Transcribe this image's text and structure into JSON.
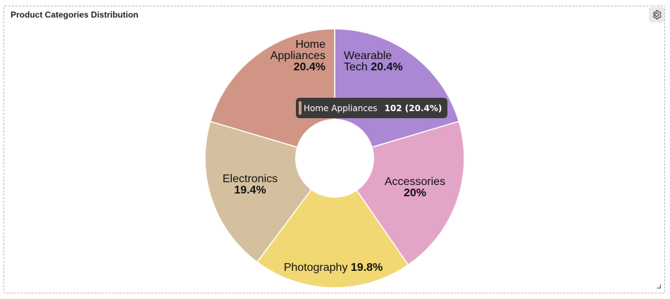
{
  "panel": {
    "title": "Product Categories Distribution",
    "settings_icon": "gear-icon",
    "resize_icon": "resize-handle-icon"
  },
  "chart_data": {
    "type": "pie",
    "donut": true,
    "title": "Product Categories Distribution",
    "slices": [
      {
        "label": "Wearable Tech",
        "value": 102,
        "percent": "20.4%",
        "color": "#ab88d4"
      },
      {
        "label": "Accessories",
        "value": 100,
        "percent": "20%",
        "color": "#e3a5c7"
      },
      {
        "label": "Photography",
        "value": 99,
        "percent": "19.8%",
        "color": "#f2d872"
      },
      {
        "label": "Electronics",
        "value": 97,
        "percent": "19.4%",
        "color": "#d4c09f"
      },
      {
        "label": "Home Appliances",
        "value": 102,
        "percent": "20.4%",
        "color": "#d09585"
      }
    ],
    "tooltip": {
      "label": "Home Appliances",
      "value": "102 (20.4%)"
    }
  }
}
